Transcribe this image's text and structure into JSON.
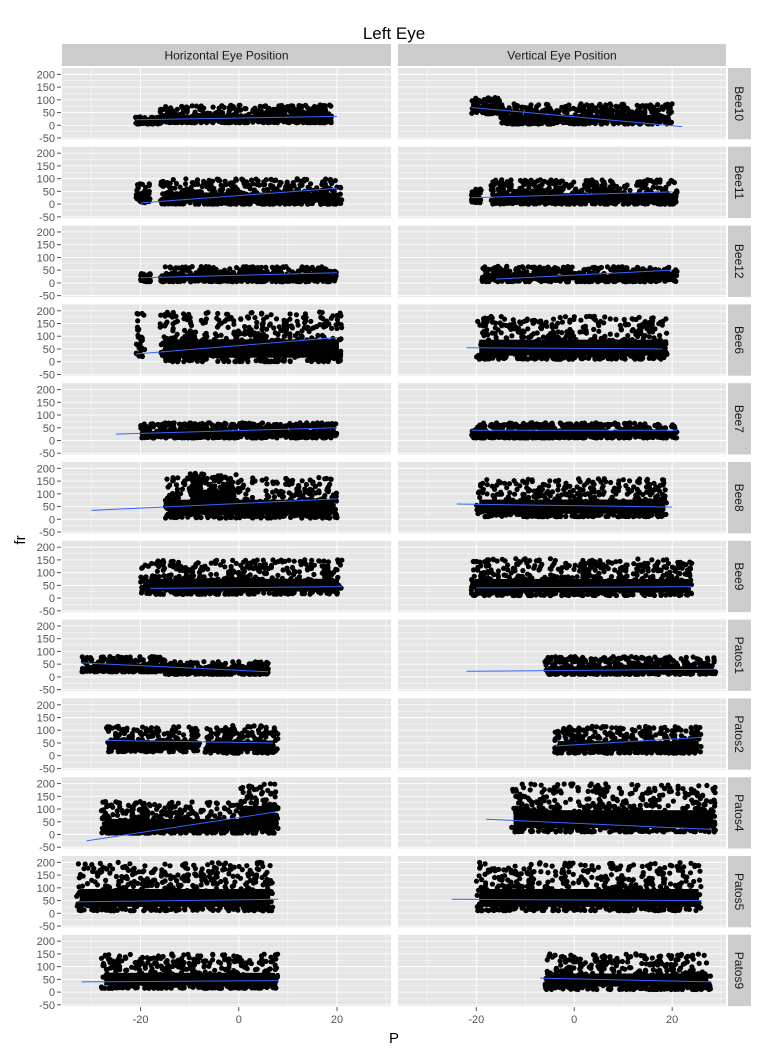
{
  "chart_data": {
    "type": "scatter",
    "title": "Left Eye",
    "xlabel": "P",
    "ylabel": "fr",
    "x_ticks": [
      -20,
      0,
      20
    ],
    "y_ticks": [
      -50,
      -25,
      0,
      25,
      50,
      75,
      100,
      125,
      150,
      175,
      200
    ],
    "y_tick_labels": [
      "-50",
      "0",
      "50",
      "100",
      "150",
      "200"
    ],
    "x_tick_labels": [
      "-20",
      "0",
      "20"
    ],
    "xlim": [
      -36,
      31
    ],
    "ylim": [
      -55,
      225
    ],
    "grid": true,
    "facet_columns": [
      "Horizontal Eye Position",
      "Vertical Eye Position"
    ],
    "facet_rows": [
      "Bee10",
      "Bee11",
      "Bee12",
      "Bee6",
      "Bee7",
      "Bee8",
      "Bee9",
      "Patos1",
      "Patos2",
      "Patos4",
      "Patos5",
      "Patos9"
    ],
    "colors": {
      "point": "#000000",
      "fit_line": "#3366FF",
      "panel_bg": "#E5E5E5",
      "strip_bg": "#CCCCCC",
      "grid": "#FFFFFF"
    },
    "panels": [
      {
        "row": "Bee10",
        "col": "Horizontal Eye Position",
        "clusters": [
          [
            -21,
            -16,
            5,
            35
          ],
          [
            -16,
            19,
            10,
            80
          ]
        ],
        "fit": [
          [
            -21,
            22
          ],
          [
            20,
            35
          ]
        ]
      },
      {
        "row": "Bee10",
        "col": "Vertical Eye Position",
        "clusters": [
          [
            -21,
            -15,
            45,
            110
          ],
          [
            -15,
            20,
            5,
            85
          ]
        ],
        "fit": [
          [
            -21,
            70
          ],
          [
            22,
            -5
          ]
        ]
      },
      {
        "row": "Bee11",
        "col": "Horizontal Eye Position",
        "clusters": [
          [
            -21,
            -18,
            5,
            80
          ],
          [
            -16,
            21,
            0,
            100
          ]
        ],
        "fit": [
          [
            -20,
            5
          ],
          [
            20,
            62
          ]
        ]
      },
      {
        "row": "Bee11",
        "col": "Vertical Eye Position",
        "clusters": [
          [
            -21,
            -19,
            5,
            60
          ],
          [
            -17,
            21,
            0,
            95
          ]
        ],
        "fit": [
          [
            -21,
            25
          ],
          [
            20,
            48
          ]
        ]
      },
      {
        "row": "Bee12",
        "col": "Horizontal Eye Position",
        "clusters": [
          [
            -20,
            -18,
            5,
            40
          ],
          [
            -16,
            20,
            5,
            65
          ]
        ],
        "fit": [
          [
            -20,
            20
          ],
          [
            20,
            40
          ]
        ]
      },
      {
        "row": "Bee12",
        "col": "Vertical Eye Position",
        "clusters": [
          [
            -19,
            21,
            5,
            65
          ]
        ],
        "fit": [
          [
            -16,
            15
          ],
          [
            20,
            50
          ]
        ]
      },
      {
        "row": "Bee6",
        "col": "Horizontal Eye Position",
        "clusters": [
          [
            -21,
            -19,
            20,
            190
          ],
          [
            -16,
            21,
            0,
            195
          ]
        ],
        "fit": [
          [
            -21,
            30
          ],
          [
            20,
            95
          ]
        ]
      },
      {
        "row": "Bee6",
        "col": "Vertical Eye Position",
        "clusters": [
          [
            -20,
            19,
            10,
            180
          ]
        ],
        "fit": [
          [
            -22,
            55
          ],
          [
            18,
            50
          ]
        ]
      },
      {
        "row": "Bee7",
        "col": "Horizontal Eye Position",
        "clusters": [
          [
            -20,
            20,
            10,
            70
          ]
        ],
        "fit": [
          [
            -25,
            25
          ],
          [
            20,
            50
          ]
        ]
      },
      {
        "row": "Bee7",
        "col": "Vertical Eye Position",
        "clusters": [
          [
            -21,
            21,
            10,
            70
          ]
        ],
        "fit": [
          [
            -21,
            40
          ],
          [
            21,
            40
          ]
        ]
      },
      {
        "row": "Bee8",
        "col": "Horizontal Eye Position",
        "clusters": [
          [
            -15,
            20,
            5,
            165
          ],
          [
            -10,
            0,
            60,
            185
          ]
        ],
        "fit": [
          [
            -30,
            35
          ],
          [
            20,
            80
          ]
        ]
      },
      {
        "row": "Bee8",
        "col": "Vertical Eye Position",
        "clusters": [
          [
            -20,
            19,
            10,
            160
          ]
        ],
        "fit": [
          [
            -24,
            60
          ],
          [
            20,
            48
          ]
        ]
      },
      {
        "row": "Bee9",
        "col": "Horizontal Eye Position",
        "clusters": [
          [
            -20,
            21,
            15,
            150
          ]
        ],
        "fit": [
          [
            -18,
            38
          ],
          [
            21,
            45
          ]
        ]
      },
      {
        "row": "Bee9",
        "col": "Vertical Eye Position",
        "clusters": [
          [
            -21,
            24,
            10,
            155
          ]
        ],
        "fit": [
          [
            -20,
            40
          ],
          [
            24,
            45
          ]
        ]
      },
      {
        "row": "Patos1",
        "col": "Horizontal Eye Position",
        "clusters": [
          [
            -32,
            -15,
            20,
            80
          ],
          [
            -15,
            6,
            10,
            60
          ]
        ],
        "fit": [
          [
            -32,
            55
          ],
          [
            6,
            20
          ]
        ]
      },
      {
        "row": "Patos1",
        "col": "Vertical Eye Position",
        "clusters": [
          [
            -6,
            29,
            10,
            80
          ]
        ],
        "fit": [
          [
            -22,
            22
          ],
          [
            29,
            30
          ]
        ]
      },
      {
        "row": "Patos2",
        "col": "Horizontal Eye Position",
        "clusters": [
          [
            -27,
            -8,
            15,
            115
          ],
          [
            -7,
            8,
            10,
            120
          ]
        ],
        "fit": [
          [
            -27,
            60
          ],
          [
            7,
            50
          ]
        ]
      },
      {
        "row": "Patos2",
        "col": "Vertical Eye Position",
        "clusters": [
          [
            -4,
            26,
            10,
            115
          ]
        ],
        "fit": [
          [
            -4,
            38
          ],
          [
            26,
            72
          ]
        ]
      },
      {
        "row": "Patos4",
        "col": "Horizontal Eye Position",
        "clusters": [
          [
            -28,
            8,
            5,
            130
          ],
          [
            0,
            8,
            40,
            200
          ]
        ],
        "fit": [
          [
            -31,
            -25
          ],
          [
            8,
            90
          ]
        ]
      },
      {
        "row": "Patos4",
        "col": "Vertical Eye Position",
        "clusters": [
          [
            -13,
            29,
            10,
            200
          ]
        ],
        "fit": [
          [
            -18,
            60
          ],
          [
            28,
            20
          ]
        ]
      },
      {
        "row": "Patos5",
        "col": "Horizontal Eye Position",
        "clusters": [
          [
            -33,
            7,
            10,
            200
          ]
        ],
        "fit": [
          [
            -33,
            45
          ],
          [
            8,
            55
          ]
        ]
      },
      {
        "row": "Patos5",
        "col": "Vertical Eye Position",
        "clusters": [
          [
            -20,
            26,
            10,
            200
          ]
        ],
        "fit": [
          [
            -25,
            55
          ],
          [
            26,
            50
          ]
        ]
      },
      {
        "row": "Patos9",
        "col": "Horizontal Eye Position",
        "clusters": [
          [
            -28,
            8,
            15,
            150
          ]
        ],
        "fit": [
          [
            -32,
            40
          ],
          [
            8,
            45
          ]
        ]
      },
      {
        "row": "Patos9",
        "col": "Vertical Eye Position",
        "clusters": [
          [
            -6,
            28,
            10,
            150
          ]
        ],
        "fit": [
          [
            -7,
            55
          ],
          [
            28,
            40
          ]
        ]
      }
    ]
  }
}
